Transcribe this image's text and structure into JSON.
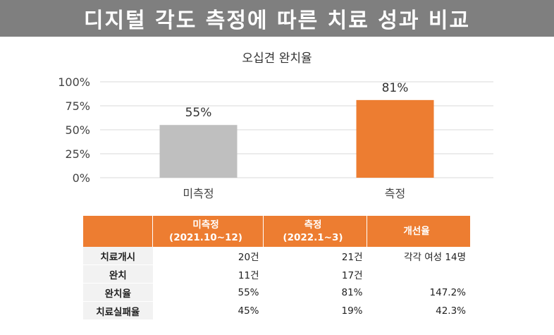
{
  "page_title": "디지털 각도 측정에 따른 치료 성과 비교",
  "chart_data": {
    "type": "bar",
    "title": "오십견 완치율",
    "categories": [
      "미측정",
      "측정"
    ],
    "values": [
      55,
      81
    ],
    "value_labels": [
      "55%",
      "81%"
    ],
    "ylim": [
      0,
      100
    ],
    "yticks": [
      "0%",
      "25%",
      "50%",
      "75%",
      "100%"
    ],
    "colors": [
      "#bfbfbf",
      "#ed7d31"
    ],
    "grid": true
  },
  "table": {
    "headers": [
      "",
      "미측정\n(2021.10~12)",
      "측정\n(2022.1~3)",
      "개선율"
    ],
    "rows": [
      [
        "치료개시",
        "20건",
        "21건",
        "각각 여성 14명"
      ],
      [
        "완치",
        "11건",
        "17건",
        ""
      ],
      [
        "완치율",
        "55%",
        "81%",
        "147.2%"
      ],
      [
        "치료실패율",
        "45%",
        "19%",
        "42.3%"
      ]
    ]
  }
}
